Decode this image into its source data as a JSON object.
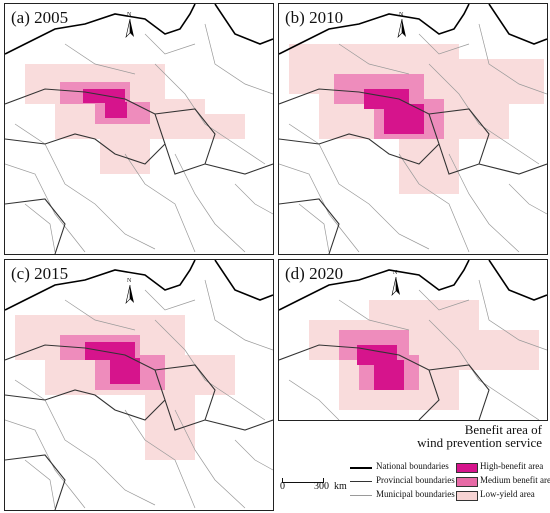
{
  "panels": [
    {
      "label": "(a) 2005"
    },
    {
      "label": "(b) 2010"
    },
    {
      "label": "(c) 2015"
    },
    {
      "label": "(d) 2020"
    }
  ],
  "north_label": "N",
  "legend": {
    "title_line1": "Benefit area of",
    "title_line2": "wind prevention service",
    "lines": [
      {
        "label": "National boundaries",
        "color": "#000000"
      },
      {
        "label": "Provincial boundaries",
        "color": "#333333"
      },
      {
        "label": "Municipal boundaries",
        "color": "#9a9a9a"
      }
    ],
    "classes": [
      {
        "label": "High-benefit area",
        "color": "#d6148c"
      },
      {
        "label": "Medium benefit area",
        "color": "#e76aa6"
      },
      {
        "label": "Low-yield area",
        "color": "#f7d4d4"
      }
    ]
  },
  "scale": {
    "zero": "0",
    "distance": "300",
    "unit": "km"
  }
}
